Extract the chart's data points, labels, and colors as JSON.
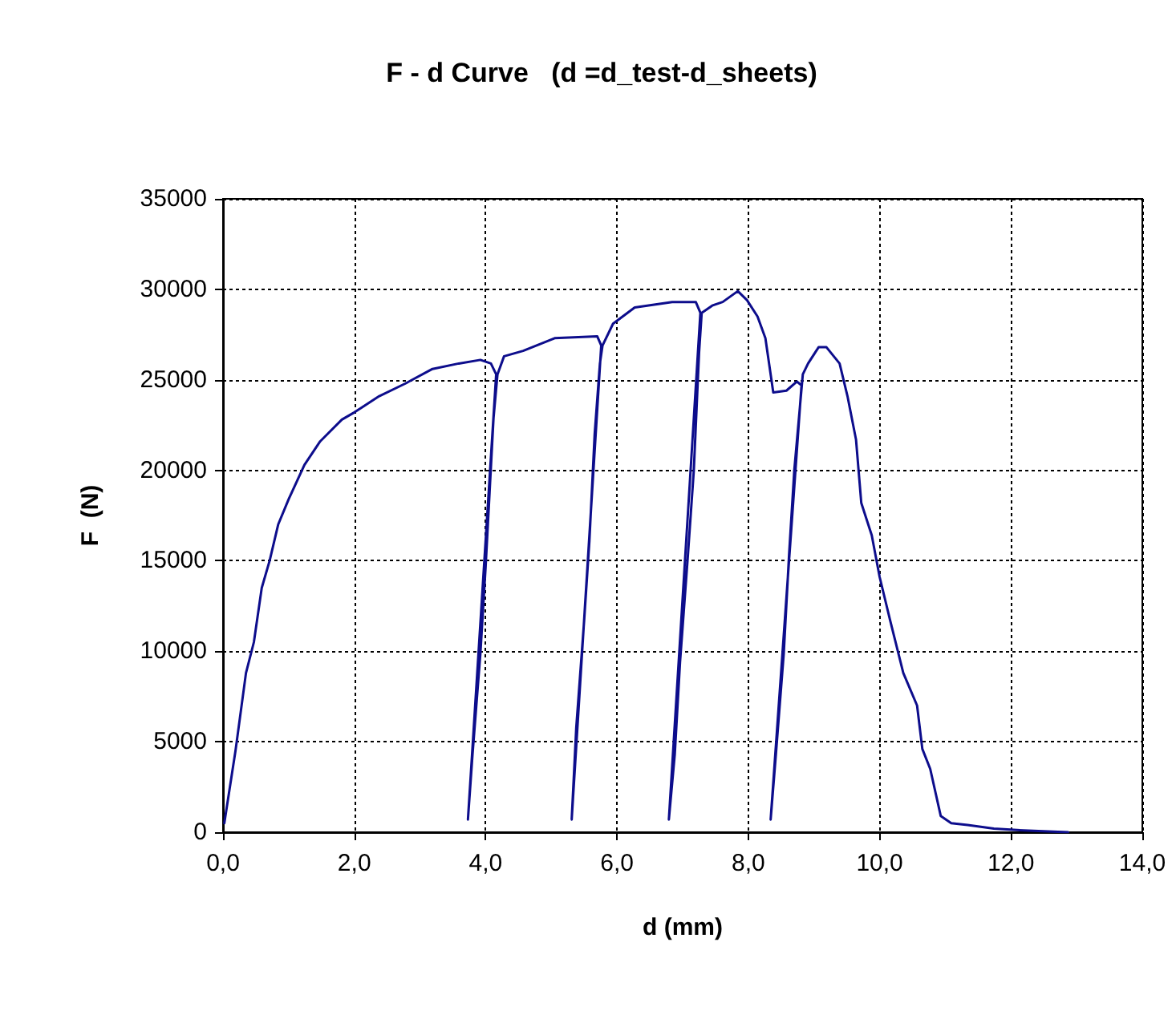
{
  "chart_data": {
    "type": "line",
    "title": "F - d Curve   (d =d_test-d_sheets)",
    "xlabel": "d (mm)",
    "ylabel": "F  (N)",
    "xlim": [
      0,
      14
    ],
    "xticks": [
      {
        "value": 0,
        "label": "0,0"
      },
      {
        "value": 2,
        "label": "2,0"
      },
      {
        "value": 4,
        "label": "4,0"
      },
      {
        "value": 6,
        "label": "6,0"
      },
      {
        "value": 8,
        "label": "8,0"
      },
      {
        "value": 10,
        "label": "10,0"
      },
      {
        "value": 12,
        "label": "12,0"
      },
      {
        "value": 14,
        "label": "14,0"
      }
    ],
    "ylim": [
      0,
      35000
    ],
    "yticks": [
      0,
      5000,
      10000,
      15000,
      20000,
      25000,
      30000,
      35000
    ],
    "grid": true,
    "marker": "none",
    "line_style": "solid",
    "series": [
      {
        "color": "#0d0d8c",
        "x": [
          0.02,
          0.19,
          0.35,
          0.47,
          0.59,
          0.71,
          0.84,
          1.0,
          1.24,
          1.48,
          1.81,
          2.0,
          2.38,
          2.78,
          3.19,
          3.59,
          3.92,
          4.08,
          4.16,
          3.73,
          3.8,
          3.92,
          4.0,
          4.06,
          4.12,
          4.18,
          4.28,
          4.57,
          5.05,
          5.7,
          5.76,
          5.31,
          5.38,
          5.5,
          5.58,
          5.66,
          5.74,
          5.78,
          5.94,
          6.27,
          6.84,
          7.04,
          7.2,
          7.27,
          6.79,
          6.88,
          6.96,
          7.08,
          7.17,
          7.25,
          7.29,
          7.45,
          7.61,
          7.84,
          7.98,
          8.14,
          8.26,
          8.38,
          8.58,
          8.74,
          8.81,
          8.34,
          8.42,
          8.54,
          8.62,
          8.7,
          8.83,
          8.91,
          9.07,
          9.19,
          9.39,
          9.51,
          9.64,
          9.72,
          9.88,
          10.0,
          10.16,
          10.36,
          10.57,
          10.65,
          10.77,
          10.93,
          11.09,
          11.34,
          11.74,
          12.19,
          12.87
        ],
        "values": [
          500,
          4500,
          8800,
          10500,
          13500,
          15000,
          17000,
          18400,
          20300,
          21600,
          22800,
          23200,
          24100,
          24800,
          25600,
          25900,
          26100,
          25900,
          25300,
          700,
          4300,
          9900,
          14700,
          18800,
          22900,
          25300,
          26300,
          26600,
          27300,
          27400,
          26900,
          700,
          5800,
          11700,
          16100,
          22000,
          25900,
          26900,
          28100,
          29000,
          29300,
          29300,
          29300,
          28700,
          700,
          4300,
          9400,
          15300,
          20000,
          26500,
          28700,
          29100,
          29300,
          29900,
          29400,
          28500,
          27300,
          24300,
          24400,
          24900,
          24700,
          700,
          4300,
          9900,
          15300,
          20000,
          25300,
          25900,
          26800,
          26800,
          25900,
          24100,
          21700,
          18200,
          16400,
          14100,
          11700,
          8800,
          7000,
          4600,
          3500,
          900,
          500,
          400,
          200,
          100,
          0
        ]
      }
    ]
  }
}
